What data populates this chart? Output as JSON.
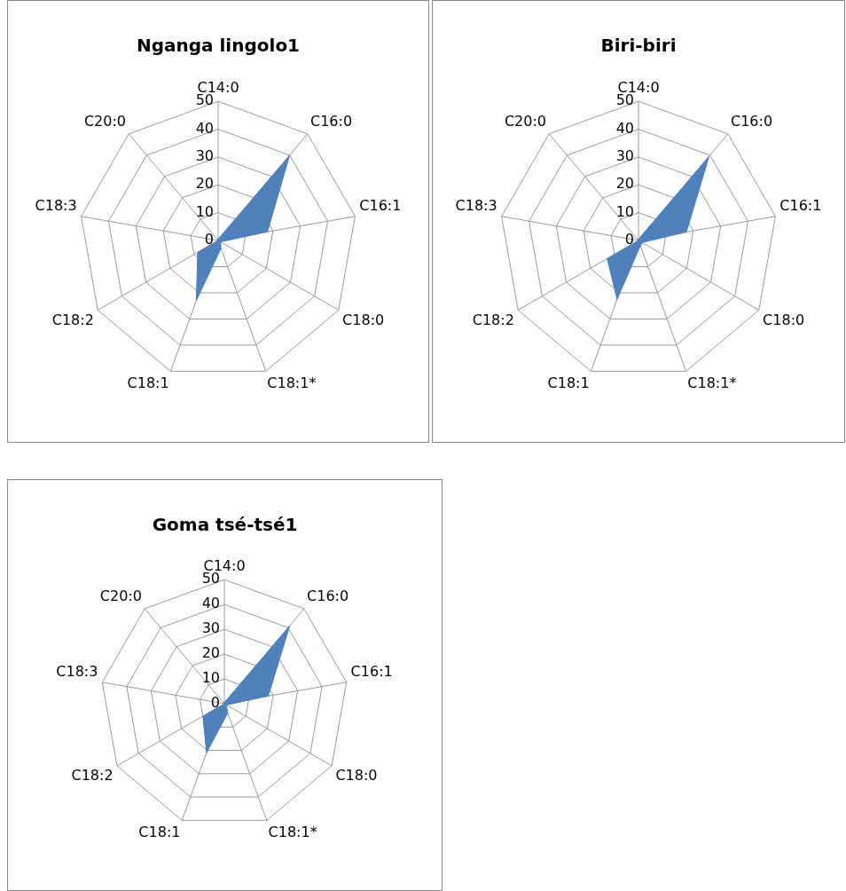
{
  "chart_data": [
    {
      "type": "radar",
      "title": "Nganga lingolo1",
      "categories": [
        "C14:0",
        "C16:0",
        "C16:1",
        "C18:0",
        "C18:1*",
        "C18:1",
        "C18:2",
        "C18:3",
        "C20:0"
      ],
      "ylim": [
        0,
        50
      ],
      "yticks": [
        0,
        10,
        20,
        30,
        40,
        50
      ],
      "grid": true,
      "legend": false,
      "series": [
        {
          "color": "#4f81bd",
          "values": [
            0.5,
            40,
            18,
            1,
            3,
            23,
            8.5,
            0,
            0.5
          ]
        }
      ]
    },
    {
      "type": "radar",
      "title": "Biri-biri",
      "categories": [
        "C14:0",
        "C16:0",
        "C16:1",
        "C18:0",
        "C18:1*",
        "C18:1",
        "C18:2",
        "C18:3",
        "C20:0"
      ],
      "ylim": [
        0,
        50
      ],
      "yticks": [
        0,
        10,
        20,
        30,
        40,
        50
      ],
      "grid": true,
      "legend": false,
      "series": [
        {
          "color": "#4f81bd",
          "values": [
            0.5,
            39.5,
            17.5,
            1.5,
            2,
            22.5,
            13,
            0,
            0.5
          ]
        }
      ]
    },
    {
      "type": "radar",
      "title": "Goma tsé-tsé1",
      "categories": [
        "C14:0",
        "C16:0",
        "C16:1",
        "C18:0",
        "C18:1*",
        "C18:1",
        "C18:2",
        "C18:3",
        "C20:0"
      ],
      "ylim": [
        0,
        50
      ],
      "yticks": [
        0,
        10,
        20,
        30,
        40,
        50
      ],
      "grid": true,
      "legend": false,
      "series": [
        {
          "color": "#4f81bd",
          "values": [
            0.5,
            41,
            18,
            1,
            4,
            21,
            10,
            0,
            0.5
          ]
        }
      ]
    }
  ]
}
